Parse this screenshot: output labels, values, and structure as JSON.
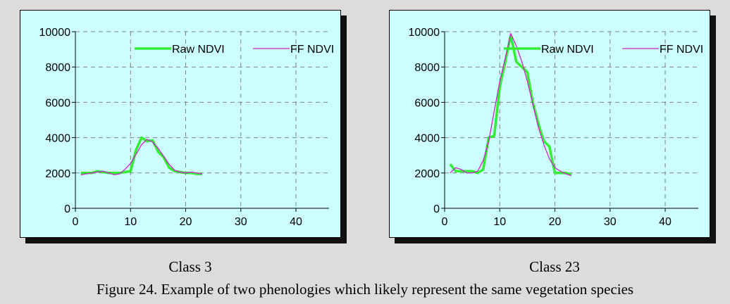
{
  "figure": {
    "caption": "Figure 24. Example of  two phenologies which likely represent the same vegetation species",
    "background_color": "#dcdcdc"
  },
  "chart_data": [
    {
      "type": "line",
      "title": "Class 3",
      "xlabel": "",
      "ylabel": "",
      "xlim": [
        0,
        46
      ],
      "ylim": [
        0,
        10000
      ],
      "x_ticks": [
        "0",
        "10",
        "20",
        "30",
        "40"
      ],
      "y_ticks": [
        "0",
        "2000",
        "4000",
        "6000",
        "8000",
        "10000"
      ],
      "grid": true,
      "legend": "top-center",
      "plot_background": "#ccffff",
      "series": [
        {
          "name": "Raw NDVI",
          "color": "#33ee33",
          "x": [
            1,
            2,
            3,
            4,
            5,
            6,
            7,
            8,
            9,
            10,
            11,
            12,
            13,
            14,
            15,
            16,
            17,
            18,
            19,
            20,
            21,
            22,
            23
          ],
          "values": [
            2000,
            2000,
            2000,
            2100,
            2050,
            2000,
            2000,
            2000,
            2050,
            2100,
            3300,
            4000,
            3800,
            3850,
            3200,
            2900,
            2300,
            2100,
            2050,
            2000,
            2000,
            1950,
            1950
          ]
        },
        {
          "name": "FF NDVI",
          "color": "#cc22cc",
          "x": [
            1,
            2,
            3,
            4,
            5,
            6,
            7,
            8,
            9,
            10,
            11,
            12,
            13,
            14,
            15,
            16,
            17,
            18,
            19,
            20,
            21,
            22,
            23
          ],
          "values": [
            1900,
            1950,
            2000,
            2050,
            2100,
            2000,
            1900,
            1950,
            2200,
            2550,
            3050,
            3600,
            3900,
            3750,
            3400,
            2950,
            2500,
            2150,
            2050,
            2000,
            2050,
            2000,
            1950
          ]
        }
      ]
    },
    {
      "type": "line",
      "title": "Class 23",
      "xlabel": "",
      "ylabel": "",
      "xlim": [
        0,
        46
      ],
      "ylim": [
        0,
        10000
      ],
      "x_ticks": [
        "0",
        "10",
        "20",
        "30",
        "40"
      ],
      "y_ticks": [
        "0",
        "2000",
        "4000",
        "6000",
        "8000",
        "10000"
      ],
      "grid": true,
      "legend": "top-center",
      "plot_background": "#ccffff",
      "series": [
        {
          "name": "Raw NDVI",
          "color": "#33ee33",
          "x": [
            1,
            2,
            3,
            4,
            5,
            6,
            7,
            8,
            9,
            10,
            11,
            12,
            13,
            14,
            15,
            16,
            17,
            18,
            19,
            20,
            21,
            22,
            23
          ],
          "values": [
            2500,
            2100,
            2100,
            2100,
            2100,
            2000,
            2200,
            4000,
            4100,
            6900,
            8300,
            9800,
            8300,
            8000,
            7700,
            6000,
            4800,
            3800,
            3500,
            2000,
            2000,
            2000,
            1900
          ]
        },
        {
          "name": "FF NDVI",
          "color": "#cc22cc",
          "x": [
            1,
            2,
            3,
            4,
            5,
            6,
            7,
            8,
            9,
            10,
            11,
            12,
            13,
            14,
            15,
            16,
            17,
            18,
            19,
            20,
            21,
            22,
            23
          ],
          "values": [
            2000,
            2300,
            2200,
            2000,
            2000,
            2100,
            2700,
            3800,
            5500,
            7200,
            8500,
            9900,
            9200,
            8300,
            7200,
            5900,
            4600,
            3600,
            2800,
            2300,
            2100,
            1950,
            1850
          ]
        }
      ]
    }
  ]
}
